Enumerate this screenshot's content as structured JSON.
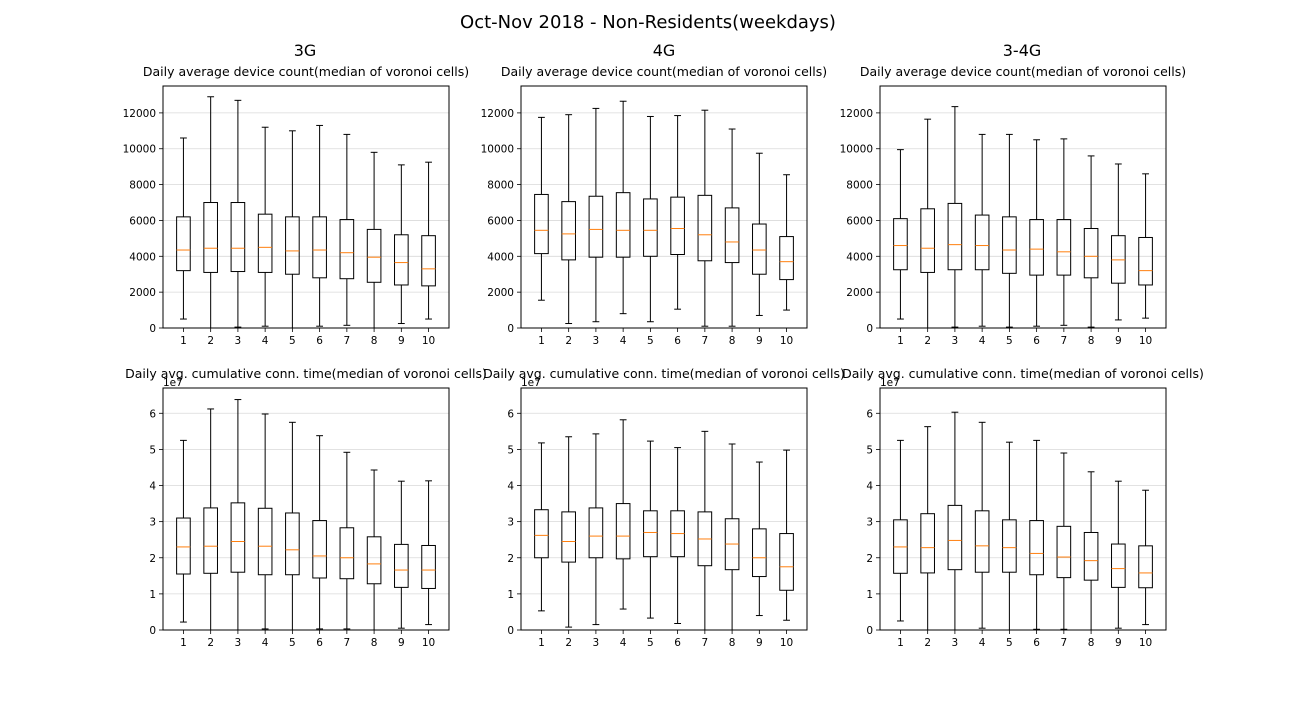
{
  "figure": {
    "title": "Oct-Nov 2018 - Non-Residents(weekdays)",
    "column_titles": [
      "3G",
      "4G",
      "3-4G"
    ]
  },
  "colors": {
    "box": "#000000",
    "median": "#ff7f0e",
    "grid": "#d9d9d9"
  },
  "chart_data": [
    {
      "type": "boxplot",
      "column": "3G",
      "title": "Daily average device count(median of voronoi cells)",
      "categories": [
        "1",
        "2",
        "3",
        "4",
        "5",
        "6",
        "7",
        "8",
        "9",
        "10"
      ],
      "ylim": [
        0,
        13500
      ],
      "yticks": [
        0,
        2000,
        4000,
        6000,
        8000,
        10000,
        12000
      ],
      "ytick_labels": [
        "0",
        "2000",
        "4000",
        "6000",
        "8000",
        "10000",
        "12000"
      ],
      "offset_label": "",
      "grid": "horizontal",
      "boxes": [
        {
          "whislo": 500,
          "q1": 3200,
          "med": 4350,
          "q3": 6200,
          "whishi": 10600
        },
        {
          "whislo": 0,
          "q1": 3100,
          "med": 4450,
          "q3": 7000,
          "whishi": 12900
        },
        {
          "whislo": 50,
          "q1": 3150,
          "med": 4450,
          "q3": 7000,
          "whishi": 12700
        },
        {
          "whislo": 100,
          "q1": 3100,
          "med": 4500,
          "q3": 6350,
          "whishi": 11200
        },
        {
          "whislo": 0,
          "q1": 3000,
          "med": 4300,
          "q3": 6200,
          "whishi": 11000
        },
        {
          "whislo": 100,
          "q1": 2800,
          "med": 4350,
          "q3": 6200,
          "whishi": 11300
        },
        {
          "whislo": 150,
          "q1": 2750,
          "med": 4200,
          "q3": 6050,
          "whishi": 10800
        },
        {
          "whislo": 0,
          "q1": 2550,
          "med": 3950,
          "q3": 5500,
          "whishi": 9800
        },
        {
          "whislo": 250,
          "q1": 2400,
          "med": 3650,
          "q3": 5200,
          "whishi": 9100
        },
        {
          "whislo": 500,
          "q1": 2350,
          "med": 3300,
          "q3": 5150,
          "whishi": 9250
        }
      ]
    },
    {
      "type": "boxplot",
      "column": "4G",
      "title": "Daily average device count(median of voronoi cells)",
      "categories": [
        "1",
        "2",
        "3",
        "4",
        "5",
        "6",
        "7",
        "8",
        "9",
        "10"
      ],
      "ylim": [
        0,
        13500
      ],
      "yticks": [
        0,
        2000,
        4000,
        6000,
        8000,
        10000,
        12000
      ],
      "ytick_labels": [
        "0",
        "2000",
        "4000",
        "6000",
        "8000",
        "10000",
        "12000"
      ],
      "offset_label": "",
      "grid": "horizontal",
      "boxes": [
        {
          "whislo": 1550,
          "q1": 4150,
          "med": 5450,
          "q3": 7450,
          "whishi": 11750
        },
        {
          "whislo": 250,
          "q1": 3800,
          "med": 5250,
          "q3": 7050,
          "whishi": 11900
        },
        {
          "whislo": 350,
          "q1": 3950,
          "med": 5500,
          "q3": 7350,
          "whishi": 12250
        },
        {
          "whislo": 800,
          "q1": 3950,
          "med": 5450,
          "q3": 7550,
          "whishi": 12650
        },
        {
          "whislo": 350,
          "q1": 4000,
          "med": 5450,
          "q3": 7200,
          "whishi": 11800
        },
        {
          "whislo": 1050,
          "q1": 4100,
          "med": 5550,
          "q3": 7300,
          "whishi": 11850
        },
        {
          "whislo": 100,
          "q1": 3750,
          "med": 5200,
          "q3": 7400,
          "whishi": 12150
        },
        {
          "whislo": 100,
          "q1": 3650,
          "med": 4800,
          "q3": 6700,
          "whishi": 11100
        },
        {
          "whislo": 700,
          "q1": 3000,
          "med": 4350,
          "q3": 5800,
          "whishi": 9750
        },
        {
          "whislo": 1000,
          "q1": 2700,
          "med": 3700,
          "q3": 5100,
          "whishi": 8550
        }
      ]
    },
    {
      "type": "boxplot",
      "column": "3-4G",
      "title": "Daily average device count(median of voronoi cells)",
      "categories": [
        "1",
        "2",
        "3",
        "4",
        "5",
        "6",
        "7",
        "8",
        "9",
        "10"
      ],
      "ylim": [
        0,
        13500
      ],
      "yticks": [
        0,
        2000,
        4000,
        6000,
        8000,
        10000,
        12000
      ],
      "ytick_labels": [
        "0",
        "2000",
        "4000",
        "6000",
        "8000",
        "10000",
        "12000"
      ],
      "offset_label": "",
      "grid": "horizontal",
      "boxes": [
        {
          "whislo": 500,
          "q1": 3250,
          "med": 4600,
          "q3": 6100,
          "whishi": 9950
        },
        {
          "whislo": 0,
          "q1": 3100,
          "med": 4450,
          "q3": 6650,
          "whishi": 11650
        },
        {
          "whislo": 50,
          "q1": 3250,
          "med": 4650,
          "q3": 6950,
          "whishi": 12350
        },
        {
          "whislo": 100,
          "q1": 3250,
          "med": 4600,
          "q3": 6300,
          "whishi": 10800
        },
        {
          "whislo": 50,
          "q1": 3050,
          "med": 4350,
          "q3": 6200,
          "whishi": 10800
        },
        {
          "whislo": 100,
          "q1": 2950,
          "med": 4400,
          "q3": 6050,
          "whishi": 10500
        },
        {
          "whislo": 150,
          "q1": 2950,
          "med": 4250,
          "q3": 6050,
          "whishi": 10550
        },
        {
          "whislo": 50,
          "q1": 2800,
          "med": 4000,
          "q3": 5550,
          "whishi": 9600
        },
        {
          "whislo": 450,
          "q1": 2500,
          "med": 3800,
          "q3": 5150,
          "whishi": 9150
        },
        {
          "whislo": 550,
          "q1": 2400,
          "med": 3200,
          "q3": 5050,
          "whishi": 8600
        }
      ]
    },
    {
      "type": "boxplot",
      "column": "3G",
      "title": "Daily avg. cumulative conn. time(median of voronoi cells)",
      "categories": [
        "1",
        "2",
        "3",
        "4",
        "5",
        "6",
        "7",
        "8",
        "9",
        "10"
      ],
      "ylim": [
        0,
        6.7
      ],
      "yticks": [
        0,
        1,
        2,
        3,
        4,
        5,
        6
      ],
      "ytick_labels": [
        "0",
        "1",
        "2",
        "3",
        "4",
        "5",
        "6"
      ],
      "offset_label": "1e7",
      "grid": "horizontal",
      "boxes": [
        {
          "whislo": 0.22,
          "q1": 1.55,
          "med": 2.3,
          "q3": 3.1,
          "whishi": 5.25
        },
        {
          "whislo": 0.0,
          "q1": 1.57,
          "med": 2.32,
          "q3": 3.38,
          "whishi": 6.12
        },
        {
          "whislo": 0.0,
          "q1": 1.6,
          "med": 2.45,
          "q3": 3.52,
          "whishi": 6.38
        },
        {
          "whislo": 0.03,
          "q1": 1.53,
          "med": 2.32,
          "q3": 3.37,
          "whishi": 5.98
        },
        {
          "whislo": 0.0,
          "q1": 1.53,
          "med": 2.22,
          "q3": 3.24,
          "whishi": 5.75
        },
        {
          "whislo": 0.03,
          "q1": 1.44,
          "med": 2.05,
          "q3": 3.03,
          "whishi": 5.38
        },
        {
          "whislo": 0.03,
          "q1": 1.42,
          "med": 2.0,
          "q3": 2.83,
          "whishi": 4.92
        },
        {
          "whislo": 0.0,
          "q1": 1.28,
          "med": 1.83,
          "q3": 2.58,
          "whishi": 4.43
        },
        {
          "whislo": 0.05,
          "q1": 1.18,
          "med": 1.66,
          "q3": 2.37,
          "whishi": 4.12
        },
        {
          "whislo": 0.15,
          "q1": 1.15,
          "med": 1.66,
          "q3": 2.34,
          "whishi": 4.13
        }
      ]
    },
    {
      "type": "boxplot",
      "column": "4G",
      "title": "Daily avg. cumulative conn. time(median of voronoi cells)",
      "categories": [
        "1",
        "2",
        "3",
        "4",
        "5",
        "6",
        "7",
        "8",
        "9",
        "10"
      ],
      "ylim": [
        0,
        6.7
      ],
      "yticks": [
        0,
        1,
        2,
        3,
        4,
        5,
        6
      ],
      "ytick_labels": [
        "0",
        "1",
        "2",
        "3",
        "4",
        "5",
        "6"
      ],
      "offset_label": "1e7",
      "grid": "horizontal",
      "boxes": [
        {
          "whislo": 0.53,
          "q1": 2.0,
          "med": 2.62,
          "q3": 3.33,
          "whishi": 5.18
        },
        {
          "whislo": 0.08,
          "q1": 1.88,
          "med": 2.45,
          "q3": 3.27,
          "whishi": 5.35
        },
        {
          "whislo": 0.15,
          "q1": 2.0,
          "med": 2.6,
          "q3": 3.38,
          "whishi": 5.43
        },
        {
          "whislo": 0.58,
          "q1": 1.97,
          "med": 2.6,
          "q3": 3.5,
          "whishi": 5.82
        },
        {
          "whislo": 0.33,
          "q1": 2.03,
          "med": 2.7,
          "q3": 3.3,
          "whishi": 5.23
        },
        {
          "whislo": 0.18,
          "q1": 2.03,
          "med": 2.67,
          "q3": 3.3,
          "whishi": 5.05
        },
        {
          "whislo": 0.0,
          "q1": 1.78,
          "med": 2.52,
          "q3": 3.27,
          "whishi": 5.5
        },
        {
          "whislo": 0.0,
          "q1": 1.67,
          "med": 2.38,
          "q3": 3.08,
          "whishi": 5.15
        },
        {
          "whislo": 0.4,
          "q1": 1.48,
          "med": 2.0,
          "q3": 2.8,
          "whishi": 4.65
        },
        {
          "whislo": 0.27,
          "q1": 1.1,
          "med": 1.75,
          "q3": 2.67,
          "whishi": 4.98
        }
      ]
    },
    {
      "type": "boxplot",
      "column": "3-4G",
      "title": "Daily avg. cumulative conn. time(median of voronoi cells)",
      "categories": [
        "1",
        "2",
        "3",
        "4",
        "5",
        "6",
        "7",
        "8",
        "9",
        "10"
      ],
      "ylim": [
        0,
        6.7
      ],
      "yticks": [
        0,
        1,
        2,
        3,
        4,
        5,
        6
      ],
      "ytick_labels": [
        "0",
        "1",
        "2",
        "3",
        "4",
        "5",
        "6"
      ],
      "offset_label": "1e7",
      "grid": "horizontal",
      "boxes": [
        {
          "whislo": 0.25,
          "q1": 1.57,
          "med": 2.3,
          "q3": 3.05,
          "whishi": 5.25
        },
        {
          "whislo": 0.0,
          "q1": 1.58,
          "med": 2.28,
          "q3": 3.22,
          "whishi": 5.63
        },
        {
          "whislo": 0.0,
          "q1": 1.67,
          "med": 2.48,
          "q3": 3.45,
          "whishi": 6.03
        },
        {
          "whislo": 0.05,
          "q1": 1.6,
          "med": 2.33,
          "q3": 3.3,
          "whishi": 5.75
        },
        {
          "whislo": 0.0,
          "q1": 1.6,
          "med": 2.28,
          "q3": 3.05,
          "whishi": 5.2
        },
        {
          "whislo": 0.02,
          "q1": 1.53,
          "med": 2.12,
          "q3": 3.03,
          "whishi": 5.25
        },
        {
          "whislo": 0.02,
          "q1": 1.45,
          "med": 2.02,
          "q3": 2.87,
          "whishi": 4.9
        },
        {
          "whislo": 0.0,
          "q1": 1.38,
          "med": 1.92,
          "q3": 2.7,
          "whishi": 4.38
        },
        {
          "whislo": 0.05,
          "q1": 1.18,
          "med": 1.7,
          "q3": 2.38,
          "whishi": 4.12
        },
        {
          "whislo": 0.15,
          "q1": 1.17,
          "med": 1.58,
          "q3": 2.33,
          "whishi": 3.87
        }
      ]
    }
  ]
}
